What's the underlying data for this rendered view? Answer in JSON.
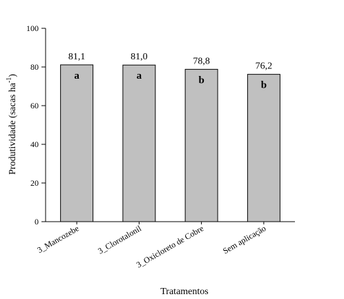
{
  "chart_data": {
    "type": "bar",
    "categories": [
      "3_Mancozebe",
      "3_Clorotalonil",
      "3_Oxicloreto de Cobre",
      "Sem aplicação"
    ],
    "values": [
      81.1,
      81.0,
      78.8,
      76.2
    ],
    "value_labels": [
      "81,1",
      "81,0",
      "78,8",
      "76,2"
    ],
    "significance_letters": [
      "a",
      "a",
      "b",
      "b"
    ],
    "xlabel": "Tratamentos",
    "ylabel_main": "Produtividade (sacas ha",
    "ylabel_sup": "-1",
    "ylabel_end": ")",
    "ylim": [
      0,
      100
    ],
    "yticks": [
      0,
      20,
      40,
      60,
      80,
      100
    ],
    "grid": false,
    "bar_color": "#c0c0c0",
    "edge_color": "#000000"
  }
}
